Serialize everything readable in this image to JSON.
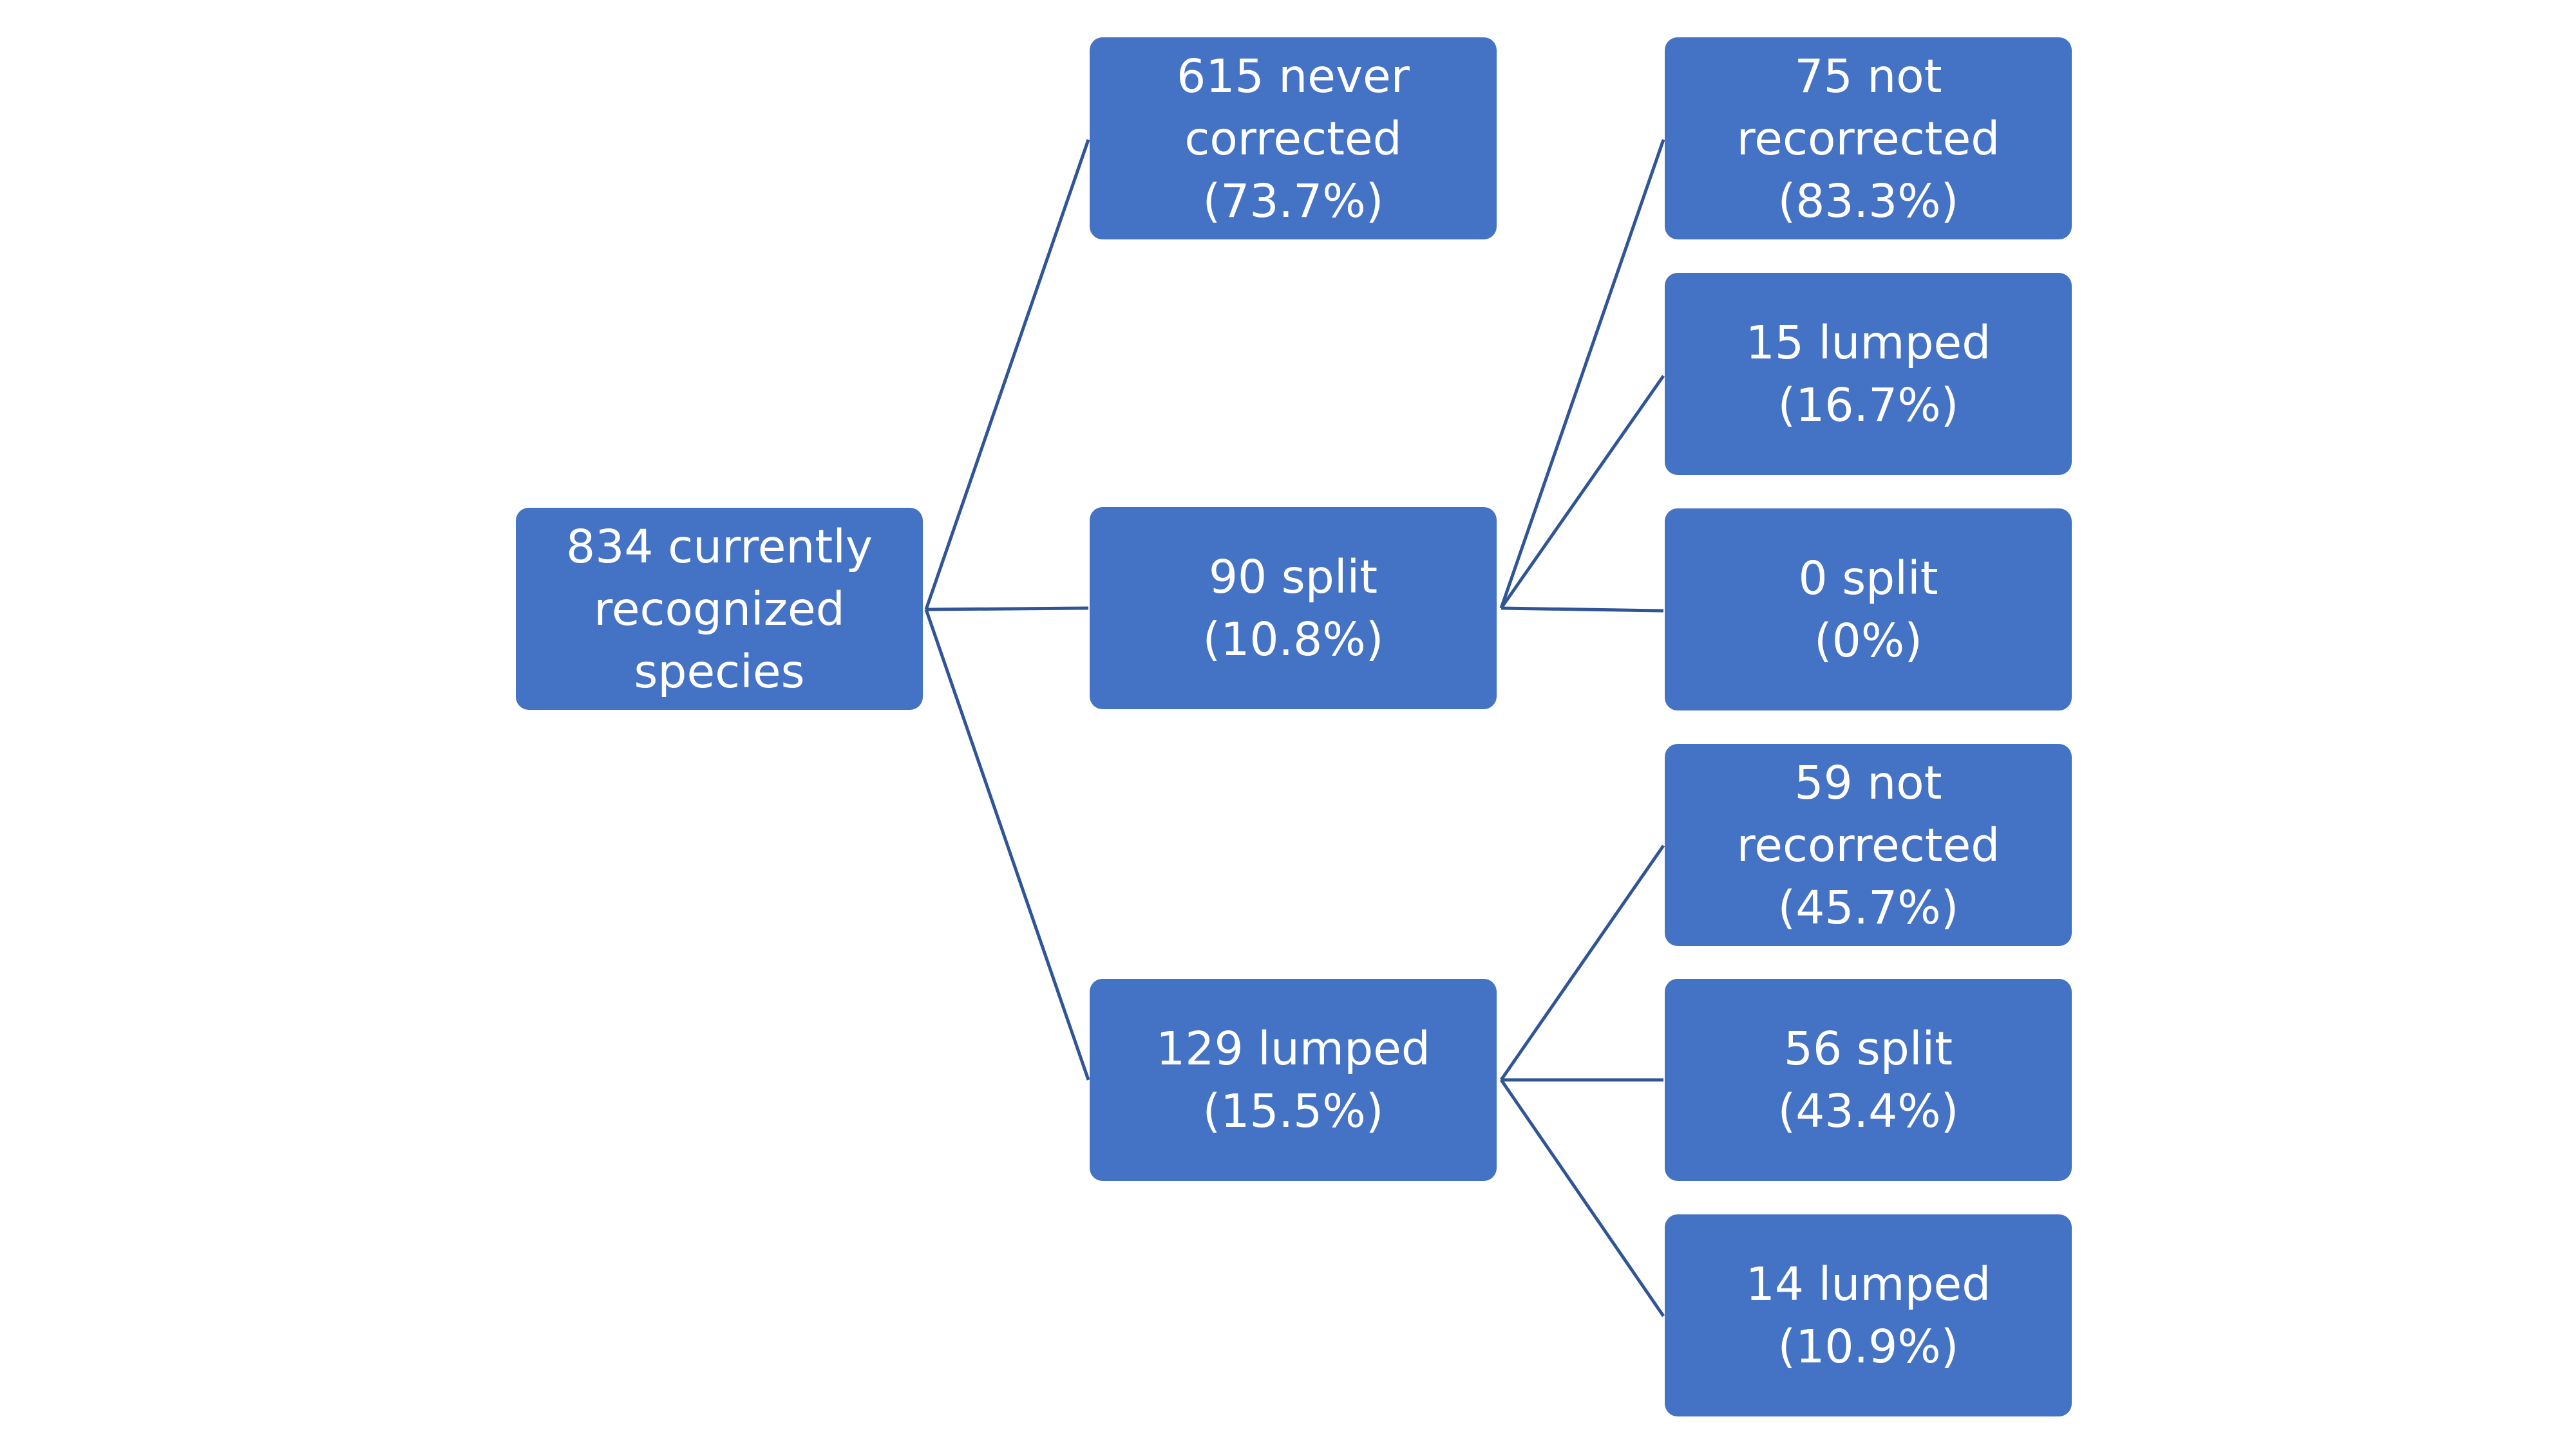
{
  "diagram": {
    "root": {
      "lines": [
        "834 currently",
        "recognized",
        "species"
      ]
    },
    "level1": [
      {
        "key": "never_corrected",
        "lines": [
          "615 never",
          "corrected",
          "(73.7%)"
        ]
      },
      {
        "key": "split",
        "lines": [
          "90 split",
          "(10.8%)"
        ]
      },
      {
        "key": "lumped",
        "lines": [
          "129 lumped",
          "(15.5%)"
        ]
      }
    ],
    "split_children": [
      {
        "lines": [
          "75 not",
          "recorrected",
          "(83.3%)"
        ]
      },
      {
        "lines": [
          "15 lumped",
          "(16.7%)"
        ]
      },
      {
        "lines": [
          "0 split",
          "(0%)"
        ]
      }
    ],
    "lumped_children": [
      {
        "lines": [
          "59 not",
          "recorrected",
          "(45.7%)"
        ]
      },
      {
        "lines": [
          "56 split",
          "(43.4%)"
        ]
      },
      {
        "lines": [
          "14 lumped",
          "(10.9%)"
        ]
      }
    ],
    "colors": {
      "node_fill": "#4472c4",
      "connector": "#2f5597",
      "text": "#ffffff"
    }
  }
}
